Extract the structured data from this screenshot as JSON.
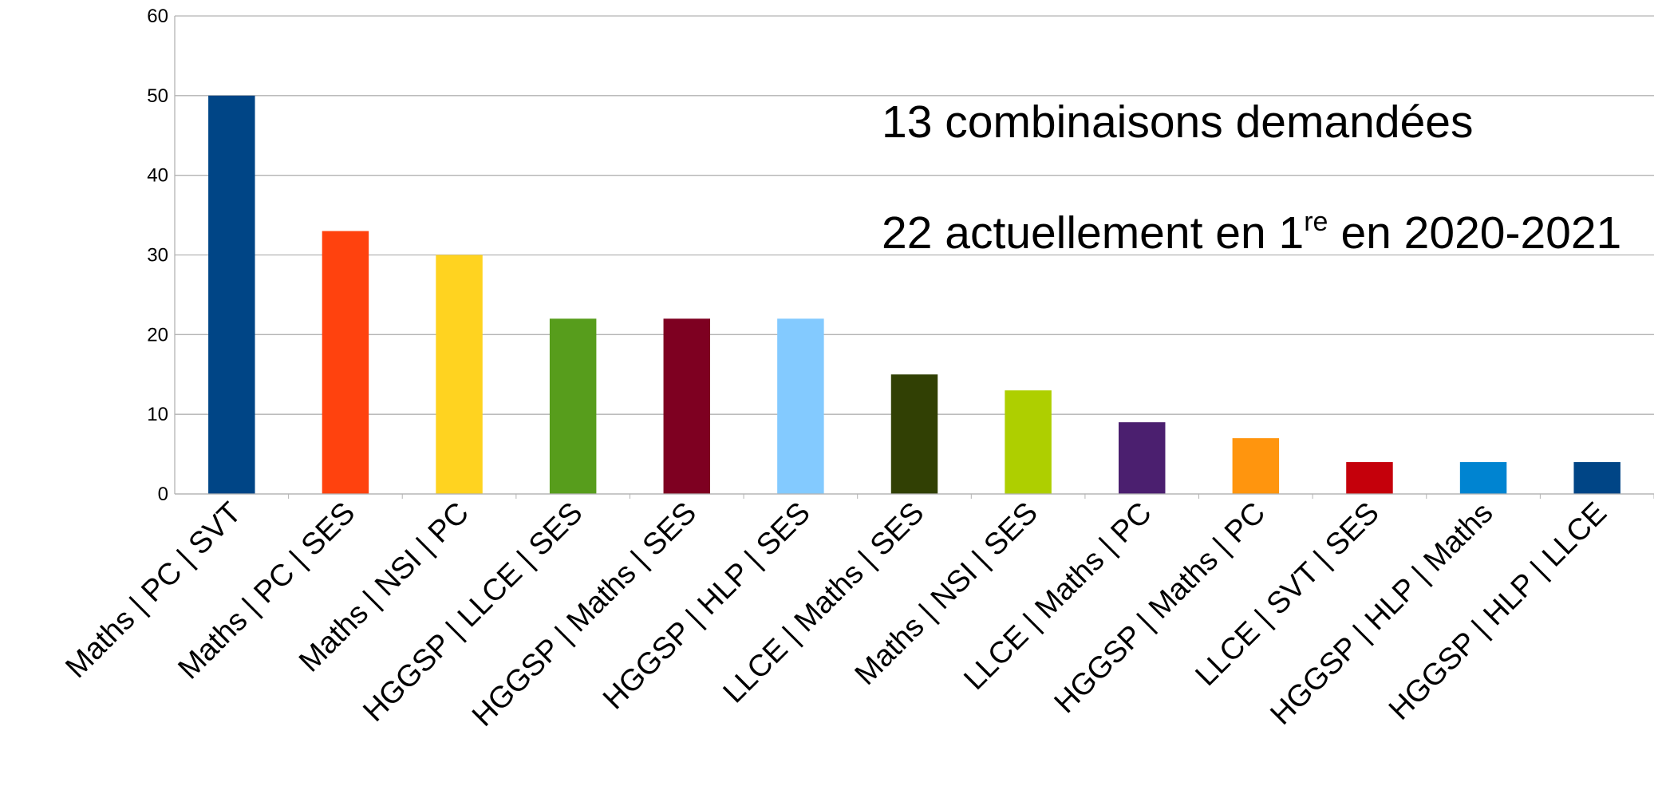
{
  "chart_data": {
    "type": "bar",
    "categories": [
      "Maths | PC | SVT",
      "Maths | PC | SES",
      "Maths | NSI | PC",
      "HGGSP | LLCE | SES",
      "HGGSP | Maths | SES",
      "HGGSP | HLP | SES",
      "LLCE | Maths | SES",
      "Maths | NSI | SES",
      "LLCE | Maths | PC",
      "HGGSP | Maths | PC",
      "LLCE | SVT | SES",
      "HGGSP | HLP | Maths",
      "HGGSP | HLP | LLCE"
    ],
    "values": [
      50,
      33,
      30,
      22,
      22,
      22,
      15,
      13,
      9,
      7,
      4,
      4,
      4
    ],
    "colors": [
      "#004586",
      "#ff420e",
      "#ffd320",
      "#579d1c",
      "#7e0021",
      "#83caff",
      "#314004",
      "#aecf00",
      "#4b1f6f",
      "#ff950e",
      "#c5000b",
      "#0084d1",
      "#004586"
    ],
    "ylim": [
      0,
      60
    ],
    "yticks": [
      0,
      10,
      20,
      30,
      40,
      50,
      60
    ],
    "grid": true,
    "annotations": [
      "13 combinaisons demandées",
      {
        "before": "22 actuellement en 1",
        "sup": "re",
        "after": "en 2020-2021"
      }
    ]
  }
}
